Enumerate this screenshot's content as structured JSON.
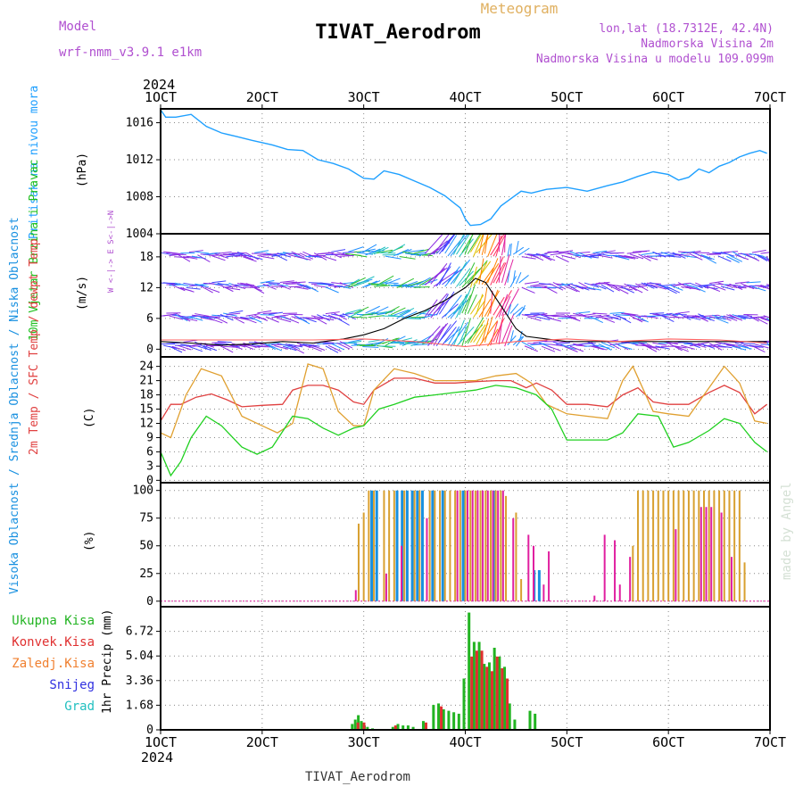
{
  "header": {
    "model_label": "Model",
    "model_value": "wrf-nmm_v3.9.1  e1km",
    "kind": "Meteogram",
    "title": "TIVAT_Aerodrom",
    "coords": "lon,lat (18.7312E, 42.4N)",
    "elevation": "Nadmorska Visina 2m",
    "model_elevation": "Nadmorska Visina u modelu 109.099m",
    "footer": "TIVAT_Aerodrom",
    "watermark": "made by Angel",
    "year_top": "2024",
    "year_bottom": "2024"
  },
  "colors": {
    "pressure": "#1fa0ff",
    "precip_total": "#22b422",
    "precip_conv": "#e03030",
    "precip_frozen": "#f08030",
    "snow": "#3030e0",
    "graupel": "#22c0c0",
    "t2m": "#e04040",
    "sfc": "#e0a030",
    "dewpt": "#20d020",
    "cloud_high": "#1890e0",
    "cloud_mid": "#d8a030",
    "cloud_low": "#e020a0",
    "wind_dir_label": "#b050d0",
    "wind_label": "#20c020"
  },
  "time_axis": {
    "ticks": [
      "1OCT",
      "2OCT",
      "3OCT",
      "4OCT",
      "5OCT",
      "6OCT",
      "7OCT"
    ],
    "tick_days": [
      1,
      2,
      3,
      4,
      5,
      6,
      7
    ]
  },
  "chart_data": [
    {
      "type": "line",
      "title": "Pritisak na nivou mora",
      "ylabel": "(hPa)",
      "ylim": [
        1004,
        1017.5
      ],
      "yticks": [
        1004,
        1008,
        1012,
        1016
      ],
      "grid": true,
      "series": [
        {
          "color_key": "pressure",
          "x": [
            1.0,
            1.05,
            1.15,
            1.3,
            1.45,
            1.6,
            1.75,
            1.9,
            2.1,
            2.25,
            2.4,
            2.55,
            2.7,
            2.85,
            3.0,
            3.1,
            3.2,
            3.35,
            3.5,
            3.65,
            3.8,
            3.95,
            4.0,
            4.05,
            4.15,
            4.25,
            4.35,
            4.45,
            4.55,
            4.65,
            4.8,
            5.0,
            5.2,
            5.4,
            5.55,
            5.7,
            5.85,
            6.0,
            6.1,
            6.2,
            6.3,
            6.4,
            6.5,
            6.6,
            6.7,
            6.8,
            6.9,
            6.97
          ],
          "y": [
            1017.4,
            1016.6,
            1016.6,
            1016.9,
            1015.6,
            1014.9,
            1014.5,
            1014.1,
            1013.6,
            1013.1,
            1013.0,
            1012.0,
            1011.6,
            1011.0,
            1010.0,
            1009.9,
            1010.8,
            1010.4,
            1009.7,
            1009.0,
            1008.1,
            1006.8,
            1005.6,
            1004.9,
            1005.0,
            1005.6,
            1007.0,
            1007.8,
            1008.6,
            1008.4,
            1008.8,
            1009.0,
            1008.6,
            1009.2,
            1009.6,
            1010.2,
            1010.7,
            1010.4,
            1009.8,
            1010.1,
            1011.0,
            1010.6,
            1011.3,
            1011.7,
            1012.3,
            1012.7,
            1013.0,
            1012.7
          ]
        }
      ]
    },
    {
      "type": "line",
      "title": "10m Vjetar Brzina i Pravac",
      "ylabel": "(m/s)",
      "direction_legend": "W <-|-> E   S<-|->N",
      "ylim": [
        -1.5,
        22.5
      ],
      "yticks": [
        0,
        6,
        12,
        18
      ],
      "grid": true,
      "series": [
        {
          "name": "speed",
          "color": "#000000",
          "x": [
            1.0,
            1.3,
            1.6,
            1.9,
            2.2,
            2.5,
            2.8,
            3.0,
            3.2,
            3.4,
            3.6,
            3.8,
            4.0,
            4.1,
            4.2,
            4.3,
            4.4,
            4.5,
            4.6,
            4.8,
            5.0,
            5.3,
            5.6,
            5.9,
            6.2,
            6.5,
            6.8,
            6.97
          ],
          "y": [
            1.5,
            1.2,
            0.8,
            1.0,
            1.5,
            1.2,
            2.0,
            2.8,
            4.0,
            6.0,
            7.5,
            9.5,
            12.0,
            13.8,
            13.0,
            10.0,
            7.0,
            4.0,
            2.5,
            2.0,
            1.5,
            1.5,
            1.5,
            1.5,
            1.5,
            1.5,
            1.5,
            1.5
          ]
        },
        {
          "name": "gust",
          "color": "#ff6060",
          "x": [
            1.0,
            1.5,
            2.0,
            2.5,
            3.0,
            3.5,
            4.0,
            4.5,
            5.0,
            5.5,
            6.0,
            6.5,
            6.97
          ],
          "y": [
            1.8,
            1.8,
            1.8,
            1.8,
            2.0,
            1.5,
            0.5,
            1.5,
            2.0,
            1.5,
            2.0,
            1.8,
            1.2
          ]
        }
      ],
      "barb_bands": [
        0.5,
        6,
        12,
        18
      ]
    },
    {
      "type": "line",
      "title": "2m Temp / SFC Temp / dewpt Temp",
      "ylabel": "(C)",
      "ylim": [
        -0.5,
        26
      ],
      "yticks": [
        0,
        3,
        6,
        9,
        12,
        15,
        18,
        21,
        24
      ],
      "grid": true,
      "series": [
        {
          "name": "2m Temp",
          "color_key": "t2m",
          "x": [
            1.0,
            1.1,
            1.2,
            1.35,
            1.5,
            1.65,
            1.8,
            2.0,
            2.2,
            2.3,
            2.45,
            2.6,
            2.75,
            2.9,
            3.0,
            3.1,
            3.3,
            3.5,
            3.7,
            3.9,
            4.1,
            4.3,
            4.45,
            4.6,
            4.7,
            4.85,
            5.0,
            5.2,
            5.4,
            5.55,
            5.7,
            5.85,
            6.0,
            6.2,
            6.4,
            6.55,
            6.7,
            6.85,
            6.97
          ],
          "y": [
            12.5,
            16.0,
            16.0,
            17.5,
            18.2,
            17.0,
            15.5,
            15.8,
            16.0,
            19.0,
            20.0,
            20.0,
            19.0,
            16.5,
            16.0,
            19.0,
            21.5,
            21.5,
            20.5,
            20.5,
            20.8,
            21.0,
            21.0,
            19.5,
            20.5,
            19.0,
            16.0,
            16.0,
            15.5,
            18.0,
            19.5,
            16.5,
            16.0,
            16.0,
            18.5,
            20.0,
            18.5,
            14.0,
            16.0
          ]
        },
        {
          "name": "SFC Temp",
          "color_key": "sfc",
          "x": [
            1.0,
            1.1,
            1.25,
            1.4,
            1.6,
            1.8,
            2.0,
            2.15,
            2.3,
            2.45,
            2.6,
            2.75,
            2.9,
            3.0,
            3.1,
            3.3,
            3.5,
            3.7,
            3.9,
            4.1,
            4.3,
            4.5,
            4.65,
            4.8,
            5.0,
            5.2,
            5.4,
            5.55,
            5.65,
            5.85,
            6.0,
            6.2,
            6.4,
            6.55,
            6.7,
            6.85,
            6.97
          ],
          "y": [
            10.0,
            9.0,
            18.0,
            23.5,
            22.0,
            13.5,
            11.5,
            10.0,
            12.0,
            24.5,
            23.5,
            14.5,
            11.5,
            11.5,
            19.0,
            23.5,
            22.5,
            21.0,
            21.0,
            21.0,
            22.0,
            22.5,
            20.5,
            16.0,
            14.0,
            13.5,
            13.0,
            21.0,
            24.0,
            14.5,
            14.0,
            13.5,
            19.5,
            24.0,
            20.5,
            12.5,
            12.0
          ]
        },
        {
          "name": "dewpt Temp",
          "color_key": "dewpt",
          "x": [
            1.0,
            1.1,
            1.2,
            1.3,
            1.45,
            1.6,
            1.8,
            1.95,
            2.1,
            2.3,
            2.45,
            2.6,
            2.75,
            2.9,
            3.0,
            3.15,
            3.3,
            3.5,
            3.7,
            3.9,
            4.1,
            4.3,
            4.5,
            4.7,
            4.85,
            5.0,
            5.2,
            5.4,
            5.55,
            5.7,
            5.9,
            6.05,
            6.2,
            6.4,
            6.55,
            6.7,
            6.85,
            6.97
          ],
          "y": [
            6.0,
            1.0,
            4.0,
            9.0,
            13.5,
            11.5,
            7.0,
            5.5,
            7.0,
            13.5,
            13.0,
            11.0,
            9.5,
            11.0,
            11.5,
            15.0,
            16.0,
            17.5,
            18.0,
            18.5,
            19.0,
            20.0,
            19.5,
            18.0,
            15.0,
            8.5,
            8.5,
            8.5,
            10.0,
            14.0,
            13.5,
            7.0,
            8.0,
            10.5,
            13.0,
            12.0,
            8.0,
            6.0
          ]
        }
      ]
    },
    {
      "type": "bar",
      "title": "Visoka Oblacnost / Srednja Oblacnost / Niska Oblacnost",
      "ylabel": "(%)",
      "ylim": [
        -5,
        107
      ],
      "yticks": [
        0,
        25,
        50,
        75,
        100
      ],
      "grid": true,
      "series": [
        {
          "name": "Visoka Oblacnost",
          "color_key": "cloud_high",
          "x": [
            3.1,
            3.15,
            3.35,
            3.4,
            3.45,
            3.5,
            3.55,
            3.6,
            3.7,
            3.8,
            4.0,
            4.3,
            4.7,
            4.75
          ],
          "y": [
            100,
            100,
            100,
            100,
            100,
            100,
            100,
            100,
            100,
            100,
            100,
            100,
            28,
            28
          ]
        },
        {
          "name": "Srednja Oblacnost",
          "color_key": "cloud_mid",
          "x": [
            2.95,
            3.0,
            3.05,
            3.1,
            3.2,
            3.25,
            3.3,
            3.4,
            3.5,
            3.55,
            3.65,
            3.7,
            3.75,
            3.8,
            3.85,
            3.9,
            3.95,
            4.0,
            4.05,
            4.1,
            4.15,
            4.2,
            4.25,
            4.3,
            4.35,
            4.4,
            4.5,
            4.55,
            5.65,
            5.7,
            5.75,
            5.8,
            5.85,
            5.9,
            5.95,
            6.0,
            6.05,
            6.1,
            6.15,
            6.2,
            6.25,
            6.3,
            6.35,
            6.4,
            6.45,
            6.5,
            6.55,
            6.6,
            6.65,
            6.7,
            6.75
          ],
          "y": [
            70,
            80,
            100,
            100,
            100,
            100,
            100,
            100,
            100,
            100,
            100,
            100,
            100,
            100,
            100,
            100,
            100,
            100,
            100,
            100,
            100,
            100,
            100,
            100,
            100,
            95,
            80,
            20,
            50,
            100,
            100,
            100,
            100,
            100,
            100,
            100,
            100,
            100,
            100,
            100,
            100,
            100,
            100,
            100,
            100,
            100,
            100,
            100,
            100,
            100,
            35
          ]
        },
        {
          "name": "Niska Oblacnost",
          "color_key": "cloud_low",
          "x": [
            2.9,
            3.2,
            3.35,
            3.6,
            3.9,
            4.0,
            4.05,
            4.1,
            4.15,
            4.2,
            4.25,
            4.3,
            4.35,
            4.45,
            4.6,
            4.65,
            4.75,
            4.8,
            5.25,
            5.35,
            5.45,
            5.5,
            5.6,
            6.05,
            6.3,
            6.35,
            6.4,
            6.5,
            6.6
          ],
          "y": [
            10,
            25,
            50,
            75,
            100,
            100,
            100,
            100,
            100,
            100,
            100,
            100,
            100,
            75,
            60,
            50,
            15,
            45,
            5,
            60,
            55,
            15,
            40,
            65,
            85,
            85,
            85,
            80,
            40
          ]
        }
      ]
    },
    {
      "type": "bar",
      "title": "1hr Precip",
      "ylabel": "1hr Precip (mm)",
      "legend": [
        "Ukupna Kisa",
        "Konvek.Kisa",
        "Zaledj.Kisa",
        "Snijeg",
        "Grad"
      ],
      "ylim": [
        0,
        8.4
      ],
      "yticks": [
        0,
        1.68,
        3.36,
        5.04,
        6.72
      ],
      "grid": true,
      "series": [
        {
          "name": "Ukupna Kisa",
          "color_key": "precip_total",
          "x": [
            2.9,
            2.93,
            2.96,
            2.99,
            3.02,
            3.05,
            3.1,
            3.3,
            3.35,
            3.4,
            3.45,
            3.5,
            3.6,
            3.7,
            3.75,
            3.8,
            3.85,
            3.9,
            3.95,
            4.0,
            4.05,
            4.1,
            4.15,
            4.2,
            4.25,
            4.3,
            4.35,
            4.4,
            4.45,
            4.5,
            4.65,
            4.7
          ],
          "y": [
            0.4,
            0.7,
            1.0,
            0.6,
            0.3,
            0.2,
            0.1,
            0.2,
            0.4,
            0.3,
            0.3,
            0.2,
            0.6,
            1.7,
            1.8,
            1.4,
            1.3,
            1.2,
            1.1,
            3.5,
            8.0,
            6.0,
            6.0,
            4.5,
            4.6,
            5.6,
            5.0,
            4.3,
            1.8,
            0.7,
            1.3,
            1.1
          ]
        },
        {
          "name": "Konvek.Kisa",
          "color_key": "precip_conv",
          "x": [
            2.93,
            2.99,
            3.3,
            3.6,
            3.75,
            4.05,
            4.1,
            4.15,
            4.2,
            4.25,
            4.3,
            4.35,
            4.4
          ],
          "y": [
            0.5,
            0.5,
            0.3,
            0.5,
            1.6,
            5.0,
            5.4,
            5.4,
            4.3,
            4.0,
            5.0,
            4.2,
            3.5
          ]
        }
      ]
    }
  ]
}
